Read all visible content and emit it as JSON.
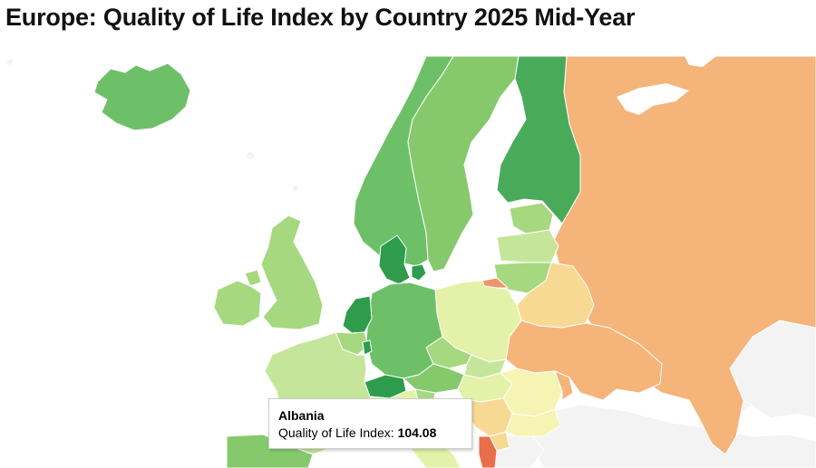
{
  "title": "Europe: Quality of Life Index by Country 2025 Mid-Year",
  "colors": {
    "sea": "#ffffff",
    "no_data": "#f3f3f3",
    "very_high": "#2e9c4c",
    "high": "#49ab59",
    "good": "#6ec068",
    "above_avg": "#86c96d",
    "medium_high": "#a6d87f",
    "medium": "#c5e69a",
    "medium_low": "#e3f2a8",
    "pale": "#f6f4b3",
    "light_orange": "#f8d993",
    "orange": "#f4b47a",
    "dark_orange": "#f0956a",
    "red_orange": "#e96f4a"
  },
  "map": {
    "countries": [
      {
        "name": "Iceland",
        "color": "#6ec068"
      },
      {
        "name": "Norway",
        "color": "#6ec068"
      },
      {
        "name": "Sweden",
        "color": "#86c96d"
      },
      {
        "name": "Finland",
        "color": "#49ab59"
      },
      {
        "name": "Russia",
        "color": "#f4b47a"
      },
      {
        "name": "Estonia",
        "color": "#a6d87f"
      },
      {
        "name": "Latvia",
        "color": "#c5e69a"
      },
      {
        "name": "Lithuania",
        "color": "#a6d87f"
      },
      {
        "name": "Kaliningrad",
        "color": "#f0956a"
      },
      {
        "name": "Belarus",
        "color": "#f8d993"
      },
      {
        "name": "Ukraine",
        "color": "#f4b47a"
      },
      {
        "name": "Poland",
        "color": "#e3f2a8"
      },
      {
        "name": "Denmark",
        "color": "#2e9c4c"
      },
      {
        "name": "Netherlands",
        "color": "#2e9c4c"
      },
      {
        "name": "Belgium",
        "color": "#a6d87f"
      },
      {
        "name": "Luxembourg",
        "color": "#2e9c4c"
      },
      {
        "name": "Germany",
        "color": "#6ec068"
      },
      {
        "name": "Czechia",
        "color": "#a6d87f"
      },
      {
        "name": "Slovakia",
        "color": "#c5e69a"
      },
      {
        "name": "Austria",
        "color": "#86c96d"
      },
      {
        "name": "Switzerland",
        "color": "#2e9c4c"
      },
      {
        "name": "Hungary",
        "color": "#e3f2a8"
      },
      {
        "name": "Romania",
        "color": "#f6f4b3"
      },
      {
        "name": "Moldova",
        "color": "#f4b47a"
      },
      {
        "name": "Serbia",
        "color": "#f8d993"
      },
      {
        "name": "Croatia",
        "color": "#e3f2a8"
      },
      {
        "name": "Slovenia",
        "color": "#a6d87f"
      },
      {
        "name": "Bulgaria",
        "color": "#f6f4b3"
      },
      {
        "name": "Albania",
        "color": "#e96f4a"
      },
      {
        "name": "North Macedonia",
        "color": "#f8d993"
      },
      {
        "name": "France",
        "color": "#c5e69a"
      },
      {
        "name": "United Kingdom",
        "color": "#a6d87f"
      },
      {
        "name": "Ireland",
        "color": "#a6d87f"
      },
      {
        "name": "Spain",
        "color": "#86c96d"
      },
      {
        "name": "Italy",
        "color": "#e3f2a8"
      }
    ]
  },
  "tooltip": {
    "country": "Albania",
    "metric_label": "Quality of Life Index:",
    "metric_value": "104.08"
  }
}
